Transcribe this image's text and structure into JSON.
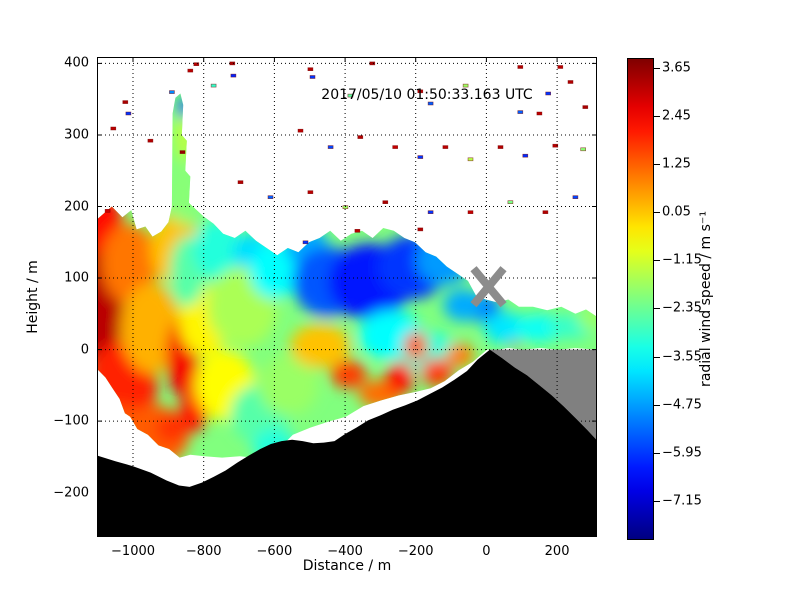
{
  "figure": {
    "background": "#ffffff"
  },
  "chart_data": {
    "type": "heatmap",
    "title": "2017/05/10 01:50:33.163 UTC",
    "xlabel": "Distance / m",
    "ylabel": "Height / m",
    "xlim": [
      -1102,
      313
    ],
    "ylim": [
      -262,
      409
    ],
    "grid": true,
    "colormap": "jet",
    "xticks": {
      "values": [
        -1000,
        -800,
        -600,
        -400,
        -200,
        0,
        200
      ],
      "labels": [
        "−1000",
        "−800",
        "−600",
        "−400",
        "−200",
        "0",
        "200"
      ]
    },
    "yticks": {
      "values": [
        400,
        300,
        200,
        100,
        0,
        -100,
        -200
      ],
      "labels": [
        "400",
        "300",
        "200",
        "100",
        "0",
        "−100",
        "−200"
      ]
    },
    "colorbar": {
      "label": "radial wind speed / m s⁻¹",
      "vmin": -8.12,
      "vmax": 3.89,
      "tick_values": [
        3.65,
        2.45,
        1.25,
        0.05,
        -1.15,
        -2.35,
        -3.55,
        -4.75,
        -5.95,
        -7.15
      ],
      "tick_labels": [
        "3.65",
        "2.45",
        "1.25",
        "0.05",
        "−1.15",
        "−2.35",
        "−3.55",
        "−4.75",
        "−5.95",
        "−7.15"
      ]
    },
    "marker": {
      "x": 6,
      "y": 88,
      "shape": "x",
      "color": "#8c8c8c",
      "half_width": 15,
      "half_height": 18,
      "stroke": 8
    },
    "terrain_color": "#000000",
    "shadow_color": "#808080",
    "terrain": [
      [
        -1102,
        -148
      ],
      [
        -1050,
        -156
      ],
      [
        -1000,
        -163
      ],
      [
        -950,
        -172
      ],
      [
        -905,
        -183
      ],
      [
        -870,
        -190
      ],
      [
        -840,
        -192
      ],
      [
        -805,
        -186
      ],
      [
        -772,
        -178
      ],
      [
        -738,
        -169
      ],
      [
        -705,
        -158
      ],
      [
        -672,
        -148
      ],
      [
        -640,
        -139
      ],
      [
        -610,
        -132
      ],
      [
        -580,
        -128
      ],
      [
        -550,
        -126
      ],
      [
        -520,
        -128
      ],
      [
        -490,
        -131
      ],
      [
        -460,
        -130
      ],
      [
        -430,
        -128
      ],
      [
        -400,
        -118
      ],
      [
        -368,
        -109
      ],
      [
        -335,
        -99
      ],
      [
        -300,
        -92
      ],
      [
        -265,
        -84
      ],
      [
        -230,
        -78
      ],
      [
        -195,
        -71
      ],
      [
        -160,
        -62
      ],
      [
        -125,
        -53
      ],
      [
        -90,
        -42
      ],
      [
        -55,
        -30
      ],
      [
        -25,
        -14
      ],
      [
        10,
        0
      ],
      [
        45,
        -12
      ],
      [
        80,
        -25
      ],
      [
        115,
        -36
      ],
      [
        150,
        -50
      ],
      [
        185,
        -64
      ],
      [
        220,
        -80
      ],
      [
        255,
        -97
      ],
      [
        285,
        -112
      ],
      [
        313,
        -127
      ],
      [
        313,
        -262
      ],
      [
        -1102,
        -262
      ]
    ],
    "shadow": [
      [
        10,
        0
      ],
      [
        313,
        0
      ],
      [
        313,
        -127
      ],
      [
        285,
        -112
      ],
      [
        255,
        -97
      ],
      [
        220,
        -80
      ],
      [
        185,
        -64
      ],
      [
        150,
        -50
      ],
      [
        115,
        -36
      ],
      [
        80,
        -25
      ],
      [
        45,
        -12
      ]
    ],
    "field": {
      "base_value": -2.1,
      "outline": [
        [
          -1102,
          182
        ],
        [
          -1060,
          200
        ],
        [
          -1030,
          185
        ],
        [
          -1005,
          195
        ],
        [
          -990,
          168
        ],
        [
          -965,
          172
        ],
        [
          -945,
          158
        ],
        [
          -920,
          165
        ],
        [
          -900,
          178
        ],
        [
          -890,
          200
        ],
        [
          -888,
          330
        ],
        [
          -880,
          352
        ],
        [
          -866,
          358
        ],
        [
          -858,
          342
        ],
        [
          -862,
          300
        ],
        [
          -848,
          292
        ],
        [
          -852,
          250
        ],
        [
          -838,
          242
        ],
        [
          -842,
          205
        ],
        [
          -822,
          196
        ],
        [
          -800,
          186
        ],
        [
          -772,
          176
        ],
        [
          -745,
          162
        ],
        [
          -712,
          156
        ],
        [
          -682,
          166
        ],
        [
          -652,
          152
        ],
        [
          -622,
          142
        ],
        [
          -592,
          132
        ],
        [
          -562,
          142
        ],
        [
          -532,
          136
        ],
        [
          -502,
          150
        ],
        [
          -472,
          156
        ],
        [
          -442,
          166
        ],
        [
          -412,
          152
        ],
        [
          -382,
          162
        ],
        [
          -352,
          166
        ],
        [
          -322,
          156
        ],
        [
          -292,
          170
        ],
        [
          -262,
          166
        ],
        [
          -232,
          156
        ],
        [
          -202,
          150
        ],
        [
          -172,
          136
        ],
        [
          -142,
          130
        ],
        [
          -112,
          116
        ],
        [
          -82,
          106
        ],
        [
          -52,
          96
        ],
        [
          -30,
          76
        ],
        [
          -2,
          70
        ],
        [
          30,
          66
        ],
        [
          62,
          70
        ],
        [
          92,
          60
        ],
        [
          132,
          60
        ],
        [
          172,
          55
        ],
        [
          212,
          60
        ],
        [
          252,
          50
        ],
        [
          282,
          56
        ],
        [
          313,
          46
        ],
        [
          313,
          0
        ],
        [
          252,
          2
        ],
        [
          202,
          0
        ],
        [
          152,
          2
        ],
        [
          102,
          0
        ],
        [
          62,
          2
        ],
        [
          32,
          0
        ],
        [
          2,
          0
        ],
        [
          -38,
          -17
        ],
        [
          -78,
          -29
        ],
        [
          -118,
          -44
        ],
        [
          -158,
          -54
        ],
        [
          -198,
          -59
        ],
        [
          -248,
          -64
        ],
        [
          -298,
          -71
        ],
        [
          -348,
          -79
        ],
        [
          -398,
          -94
        ],
        [
          -448,
          -101
        ],
        [
          -498,
          -109
        ],
        [
          -548,
          -119
        ],
        [
          -588,
          -139
        ],
        [
          -618,
          -154
        ],
        [
          -658,
          -151
        ],
        [
          -698,
          -149
        ],
        [
          -748,
          -151
        ],
        [
          -798,
          -149
        ],
        [
          -838,
          -147
        ],
        [
          -868,
          -151
        ],
        [
          -898,
          -139
        ],
        [
          -928,
          -134
        ],
        [
          -958,
          -119
        ],
        [
          -988,
          -111
        ],
        [
          -1008,
          -94
        ],
        [
          -1023,
          -89
        ],
        [
          -1038,
          -69
        ],
        [
          -1058,
          -54
        ],
        [
          -1078,
          -39
        ],
        [
          -1102,
          -27
        ]
      ],
      "blobs": [
        [
          -1088,
          80,
          22,
          85,
          3.2
        ],
        [
          -1085,
          175,
          20,
          30,
          2.3
        ],
        [
          -1030,
          -50,
          35,
          45,
          2.0
        ],
        [
          -1045,
          -110,
          30,
          25,
          1.5
        ],
        [
          -1010,
          120,
          28,
          40,
          1.0
        ],
        [
          -950,
          30,
          30,
          45,
          0.3
        ],
        [
          -940,
          -120,
          35,
          30,
          1.3
        ],
        [
          -890,
          -110,
          16,
          14,
          1.8
        ],
        [
          -860,
          -10,
          16,
          40,
          2.5
        ],
        [
          -828,
          -85,
          14,
          22,
          2.1
        ],
        [
          -880,
          140,
          25,
          35,
          0.1
        ],
        [
          -800,
          40,
          25,
          35,
          -0.5
        ],
        [
          -855,
          300,
          10,
          28,
          -1.4
        ],
        [
          -853,
          338,
          8,
          10,
          -5.6
        ],
        [
          -858,
          215,
          12,
          30,
          -2.0
        ],
        [
          -845,
          110,
          18,
          35,
          -2.6
        ],
        [
          -760,
          140,
          25,
          30,
          -3.2
        ],
        [
          -660,
          135,
          20,
          20,
          -4.0
        ],
        [
          -690,
          60,
          35,
          40,
          -1.6
        ],
        [
          -740,
          -50,
          30,
          35,
          -0.6
        ],
        [
          -640,
          -90,
          30,
          30,
          -2.6
        ],
        [
          -600,
          -135,
          22,
          18,
          -3.2
        ],
        [
          -560,
          -50,
          30,
          30,
          -1.8
        ],
        [
          -600,
          110,
          25,
          28,
          -3.6
        ],
        [
          -470,
          5,
          30,
          22,
          0.1
        ],
        [
          -510,
          145,
          22,
          20,
          -4.6
        ],
        [
          -450,
          95,
          35,
          35,
          -5.6
        ],
        [
          -330,
          95,
          42,
          38,
          -6.4
        ],
        [
          -210,
          115,
          35,
          32,
          -6.0
        ],
        [
          -120,
          125,
          28,
          25,
          -4.8
        ],
        [
          -270,
          20,
          32,
          25,
          -3.6
        ],
        [
          -160,
          -5,
          28,
          22,
          -3.2
        ],
        [
          -200,
          5,
          12,
          14,
          1.4
        ],
        [
          -390,
          -35,
          18,
          14,
          1.7
        ],
        [
          -300,
          -62,
          22,
          14,
          1.1
        ],
        [
          -245,
          -40,
          14,
          16,
          2.2
        ],
        [
          -140,
          -32,
          16,
          14,
          1.7
        ],
        [
          -75,
          -8,
          14,
          12,
          0.9
        ],
        [
          80,
          15,
          5,
          10,
          3.0
        ],
        [
          -10,
          58,
          18,
          14,
          -5.2
        ],
        [
          -65,
          62,
          20,
          16,
          -4.6
        ],
        [
          55,
          30,
          22,
          16,
          -3.9
        ],
        [
          150,
          30,
          26,
          14,
          -3.5
        ],
        [
          240,
          32,
          22,
          12,
          -3.0
        ],
        [
          298,
          42,
          14,
          10,
          -1.8
        ]
      ]
    },
    "specks": [
      [
        -1022,
        346,
        3.4
      ],
      [
        -1013,
        330,
        -6
      ],
      [
        -1056,
        309,
        3.2
      ],
      [
        -951,
        292,
        3.3
      ],
      [
        -860,
        276,
        3.6
      ],
      [
        -821,
        399,
        3.3
      ],
      [
        -719,
        400,
        3.4
      ],
      [
        -716,
        383,
        -6.2
      ],
      [
        -772,
        369,
        -3
      ],
      [
        -498,
        392,
        3.3
      ],
      [
        -492,
        381,
        -6
      ],
      [
        -385,
        355,
        -2.5
      ],
      [
        -323,
        400,
        3.4
      ],
      [
        -187,
        361,
        3.2
      ],
      [
        -158,
        344,
        -5.5
      ],
      [
        -59,
        369,
        -1.8
      ],
      [
        96,
        395,
        3.3
      ],
      [
        175,
        358,
        -6
      ],
      [
        209,
        395,
        3.2
      ],
      [
        280,
        339,
        3.4
      ],
      [
        -526,
        306,
        3.2
      ],
      [
        -441,
        283,
        -5.8
      ],
      [
        -357,
        297,
        3.3
      ],
      [
        -258,
        283,
        3.1
      ],
      [
        -187,
        269,
        -6
      ],
      [
        -116,
        283,
        3.2
      ],
      [
        -45,
        266,
        -1.5
      ],
      [
        40,
        283,
        3.3
      ],
      [
        110,
        271,
        -6.1
      ],
      [
        195,
        285,
        3.2
      ],
      [
        274,
        280,
        -2
      ],
      [
        -696,
        234,
        3.3
      ],
      [
        -611,
        213,
        -5.5
      ],
      [
        -498,
        220,
        3.2
      ],
      [
        -399,
        199,
        -1.8
      ],
      [
        -286,
        206,
        3.4
      ],
      [
        -158,
        192,
        -6
      ],
      [
        -45,
        192,
        3.1
      ],
      [
        68,
        206,
        -2.2
      ],
      [
        167,
        192,
        3.3
      ],
      [
        252,
        213,
        -5.8
      ],
      [
        -365,
        166,
        3.2
      ],
      [
        -512,
        150,
        -6
      ],
      [
        -187,
        168,
        3.3
      ],
      [
        -1072,
        194,
        3.0
      ],
      [
        -890,
        360,
        -5
      ],
      [
        -838,
        390,
        3.2
      ],
      [
        238,
        374,
        3.3
      ],
      [
        96,
        332,
        -5.5
      ],
      [
        150,
        330,
        3.2
      ]
    ]
  }
}
